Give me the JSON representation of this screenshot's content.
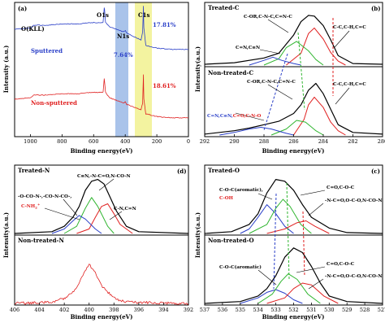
{
  "colors": {
    "blue": "#2a3fc8",
    "red": "#e02020",
    "green": "#2fb52f",
    "black": "#000000",
    "band_n": "#a9c3ea",
    "band_c": "#f3f3a0"
  },
  "chart_data": [
    {
      "panel": "a",
      "type": "line",
      "xlabel": "Binding energy(eV)",
      "ylabel": "Intensity (a.u.)",
      "xlim": [
        1100,
        0
      ],
      "xticks": [
        "1000",
        "800",
        "600",
        "400",
        "200",
        "0"
      ],
      "annotations": [
        "O(KLL)",
        "O1s",
        "N1s",
        "C1s",
        "17.81%",
        "7.64%",
        "18.61%"
      ],
      "series": [
        {
          "name": "Sputtered",
          "color": "blue",
          "x": [
            1100,
            1000,
            980,
            900,
            800,
            700,
            600,
            540,
            533,
            531,
            525,
            500,
            410,
            400,
            398,
            390,
            300,
            290,
            285,
            282,
            270,
            200,
            100,
            0
          ],
          "y": [
            80,
            81,
            83,
            83,
            84,
            84,
            85,
            85,
            96,
            95,
            85,
            82,
            78,
            79,
            79,
            77,
            72,
            78,
            97,
            81,
            68,
            66,
            65,
            65
          ]
        },
        {
          "name": "Non-sputtered",
          "color": "red",
          "x": [
            1100,
            1000,
            980,
            900,
            800,
            700,
            600,
            540,
            533,
            531,
            525,
            500,
            410,
            400,
            390,
            300,
            290,
            285,
            282,
            270,
            200,
            100,
            0
          ],
          "y": [
            28,
            29,
            31,
            31,
            32,
            32,
            33,
            33,
            43,
            41,
            33,
            29,
            25,
            26,
            24,
            20,
            25,
            46,
            28,
            17,
            15,
            14,
            14
          ]
        }
      ]
    },
    {
      "panel": "b",
      "type": "line",
      "xlabel": "Binding energy(eV)",
      "ylabel": "Intensity(a.u.)",
      "xlim": [
        292,
        280
      ],
      "xticks": [
        "292",
        "290",
        "288",
        "286",
        "284",
        "282",
        "280"
      ],
      "sublabels": [
        "Treated-C",
        "Non-treated-C"
      ],
      "annotations": [
        "C-OR,C-N-C,C=N-C",
        "C-C,C-H,C=C",
        "C=N,C≡N",
        "C-OR,C-N-C,C=N-C",
        "C-C,C-H,C=C",
        "C=N,C≡N,",
        "C=O,C-N-O"
      ],
      "series": [
        {
          "name": "Treated-C envelope",
          "color": "black",
          "x": [
            292,
            290,
            288,
            287,
            286,
            285.5,
            285,
            284.6,
            284,
            283.5,
            283,
            282,
            280
          ],
          "y": [
            1,
            3,
            9,
            15,
            38,
            55,
            63,
            62,
            50,
            32,
            12,
            2,
            1
          ]
        },
        {
          "name": "Treated-C C-C,C-H,C=C",
          "color": "red",
          "x": [
            286.5,
            285.5,
            285,
            284.6,
            284,
            283.5,
            283,
            282.5
          ],
          "y": [
            0,
            15,
            40,
            47,
            33,
            16,
            5,
            0
          ]
        },
        {
          "name": "Treated-C C-OR,C-N-C,C=N-C",
          "color": "green",
          "x": [
            288,
            287,
            286.5,
            285.8,
            285,
            284.5,
            284
          ],
          "y": [
            0,
            8,
            22,
            30,
            18,
            7,
            0
          ]
        },
        {
          "name": "Treated-C C=N,C≡N",
          "color": "blue",
          "x": [
            289,
            288,
            287.4,
            286.8,
            286,
            285.5
          ],
          "y": [
            0,
            6,
            10,
            6,
            2,
            0
          ]
        },
        {
          "name": "Non-treated-C envelope",
          "color": "black",
          "x": [
            292,
            290,
            289,
            288,
            287,
            286,
            285.5,
            285,
            284.5,
            284,
            283.5,
            283,
            282,
            280
          ],
          "y": [
            1,
            5,
            8,
            12,
            16,
            25,
            35,
            52,
            60,
            48,
            30,
            12,
            3,
            1
          ]
        },
        {
          "name": "Non-treated-C C-C,C-H,C=C",
          "color": "red",
          "x": [
            286,
            285.3,
            285,
            284.6,
            284,
            283.5,
            283,
            282.5
          ],
          "y": [
            0,
            18,
            35,
            44,
            32,
            15,
            5,
            0
          ]
        },
        {
          "name": "Non-treated-C C-OR,C-N-C,C=N-C",
          "color": "green",
          "x": [
            287.5,
            286.5,
            285.8,
            285.2,
            284.5,
            284
          ],
          "y": [
            0,
            7,
            17,
            15,
            5,
            0
          ]
        },
        {
          "name": "Non-treated-C C=N,C≡N,C=O,C-N-O",
          "color": "blue",
          "x": [
            291,
            290,
            289,
            288.2,
            287.5,
            286.5,
            286
          ],
          "y": [
            0,
            3,
            7,
            9,
            7,
            2,
            0
          ]
        }
      ]
    },
    {
      "panel": "d",
      "type": "line",
      "xlabel": "Binding energy(eV)",
      "ylabel": "Intensity(a.u.)",
      "xlim": [
        406,
        392
      ],
      "xticks": [
        "406",
        "404",
        "402",
        "400",
        "398",
        "396",
        "394",
        "392"
      ],
      "sublabels": [
        "Treated-N",
        "Non-treated-N"
      ],
      "annotations": [
        "C≡N,-N-C=O,N-CO-N",
        "-O-CO-N-,-CO-N-CO-,",
        "C-NH2+",
        "C-N,C=N"
      ],
      "series": [
        {
          "name": "Treated-N envelope",
          "color": "black",
          "x": [
            406,
            403,
            402,
            401.3,
            400.8,
            400.3,
            399.8,
            399.3,
            398.8,
            398.3,
            397.8,
            397,
            396,
            392
          ],
          "y": [
            0,
            2,
            8,
            18,
            30,
            48,
            58,
            60,
            55,
            40,
            25,
            8,
            2,
            0
          ]
        },
        {
          "name": "Treated-N C≡N,-N-C=O,N-CO-N",
          "color": "green",
          "x": [
            402,
            401,
            400.3,
            399.8,
            399.3,
            398.5,
            398
          ],
          "y": [
            0,
            8,
            28,
            40,
            30,
            8,
            0
          ]
        },
        {
          "name": "Treated-N C-N,C=N",
          "color": "red",
          "x": [
            401,
            400,
            399.5,
            399,
            398.5,
            398,
            397.5,
            396.5
          ],
          "y": [
            0,
            5,
            18,
            30,
            33,
            22,
            10,
            0
          ]
        },
        {
          "name": "Treated-N -O-CO-N-,-CO-N-CO-",
          "color": "blue",
          "x": [
            403,
            402,
            401.3,
            400.8,
            400.3,
            399.5,
            399
          ],
          "y": [
            0,
            5,
            14,
            20,
            16,
            5,
            0
          ]
        },
        {
          "name": "Non-treated-N",
          "color": "red",
          "x": [
            406,
            403,
            402,
            401,
            400.5,
            400,
            399.5,
            399,
            398,
            397,
            392
          ],
          "y": [
            0,
            1,
            4,
            12,
            22,
            30,
            24,
            14,
            4,
            1,
            0
          ]
        }
      ]
    },
    {
      "panel": "c",
      "type": "line",
      "xlabel": "Binding energy(eV)",
      "ylabel": "Intensity(a.u.)",
      "xlim": [
        537,
        527
      ],
      "xticks": [
        "537",
        "536",
        "535",
        "534",
        "533",
        "532",
        "531",
        "530",
        "529",
        "528",
        "527"
      ],
      "sublabels": [
        "Treated-O",
        "Non-treated-O"
      ],
      "annotations": [
        "C-O-C(aromatic),",
        "C-OH",
        "C=O,C-O-C",
        "-N-C=O,O-C-O,N-CO-N",
        "C-O-C(aromatic)",
        "C=O,C-O-C",
        "-N-C=O,O-C-O,N-CO-N"
      ],
      "series": [
        {
          "name": "Treated-O envelope",
          "color": "black",
          "x": [
            537,
            535.5,
            534.5,
            534,
            533.5,
            533,
            532.5,
            532,
            531.5,
            531,
            530,
            529,
            527
          ],
          "y": [
            0,
            2,
            10,
            22,
            45,
            60,
            58,
            48,
            32,
            18,
            6,
            1,
            0
          ]
        },
        {
          "name": "Treated-O C-O-C(aromatic),C-OH",
          "color": "blue",
          "x": [
            535,
            534.5,
            534,
            533.5,
            533,
            532.5,
            532
          ],
          "y": [
            0,
            5,
            18,
            32,
            22,
            8,
            0
          ]
        },
        {
          "name": "Treated-O C=O,C-O-C",
          "color": "green",
          "x": [
            534.5,
            533.5,
            533,
            532.6,
            532.2,
            531.6,
            531
          ],
          "y": [
            0,
            10,
            28,
            38,
            30,
            10,
            0
          ]
        },
        {
          "name": "Treated-O -N-C=O,O-C-O,N-CO-N",
          "color": "red",
          "x": [
            533.5,
            532.5,
            531.8,
            531.3,
            530.8,
            530
          ],
          "y": [
            0,
            5,
            12,
            14,
            8,
            0
          ]
        },
        {
          "name": "Non-treated-O envelope",
          "color": "black",
          "x": [
            537,
            535,
            534,
            533.5,
            533,
            532.5,
            532,
            531.5,
            531,
            530.5,
            530,
            529,
            527
          ],
          "y": [
            0,
            2,
            8,
            16,
            30,
            50,
            60,
            55,
            40,
            22,
            8,
            2,
            0
          ]
        },
        {
          "name": "Non-treated-O C-O-C(aromatic)",
          "color": "blue",
          "x": [
            535,
            534,
            533.5,
            533,
            532.5,
            532,
            531.5
          ],
          "y": [
            0,
            6,
            12,
            15,
            11,
            4,
            0
          ]
        },
        {
          "name": "Non-treated-O C=O,C-O-C",
          "color": "green",
          "x": [
            534,
            533.2,
            532.7,
            532.3,
            531.8,
            531.2,
            530.5
          ],
          "y": [
            0,
            10,
            24,
            32,
            26,
            10,
            0
          ]
        },
        {
          "name": "Non-treated-O -N-C=O,O-C-O,N-CO-N",
          "color": "red",
          "x": [
            533.5,
            532.5,
            532,
            531.5,
            531,
            530.3,
            529.5
          ],
          "y": [
            0,
            6,
            16,
            22,
            20,
            8,
            0
          ]
        }
      ]
    }
  ],
  "text": {
    "a_letter": "(a)",
    "b_letter": "(b)",
    "d_letter": "(d)",
    "c_letter": "(c)",
    "okll": "O(KLL)",
    "o1s": "O1s",
    "n1s": "N1s",
    "c1s": "C1s",
    "pct_c_sp": "17.81%",
    "pct_n_sp": "7.64%",
    "pct_c_non": "18.61%",
    "sputtered": "Sputtered",
    "non_sputtered": "Non-sputtered",
    "xlabel_a": "Binding energy(eV)",
    "xlabel_b": "Binding energy(eV)",
    "xlabel_d": "Binding energy(eV)",
    "xlabel_c": "Binding energy(eV)",
    "ylabel_a": "Intensity (a.u.)",
    "ylabel_b": "Intensity(a.u.)",
    "ylabel_d": "Intensity(a.u.)",
    "ylabel_c": "Intensity(a.u.)",
    "treated_c": "Treated-C",
    "nontreated_c": "Non-treated-C",
    "b_t_green": "C-OR,C-N-C,C=N-C",
    "b_t_red": "C-C,C-H,C=C",
    "b_t_blue": "C=N,C≡N",
    "b_n_green": "C-OR,C-N-C,C=N-C",
    "b_n_red": "C-C,C-H,C=C",
    "b_n_blue1": "C=N,C≡N,",
    "b_n_blue2": "C=O,C-N-O",
    "treated_n": "Treated-N",
    "nontreated_n": "Non-treated-N",
    "d_t_green": "C≡N,-N-C=O,N-CO-N",
    "d_t_blue": "-O-CO-N-,-CO-N-CO-,",
    "d_t_red1": "C-NH",
    "d_t_red2": "C-N,C=N",
    "treated_o": "Treated-O",
    "nontreated_o": "Non-treated-O",
    "c_t_blue": "C-O-C(aromatic),",
    "c_t_red": "C-OH",
    "c_t_green": "C=O,C-O-C",
    "c_t_redr": "-N-C=O,O-C-O,N-CO-N",
    "c_n_blue": "C-O-C(aromatic)",
    "c_n_green": "C=O,C-O-C",
    "c_n_red": "-N-C=O,O-C-O,N-CO-N"
  }
}
